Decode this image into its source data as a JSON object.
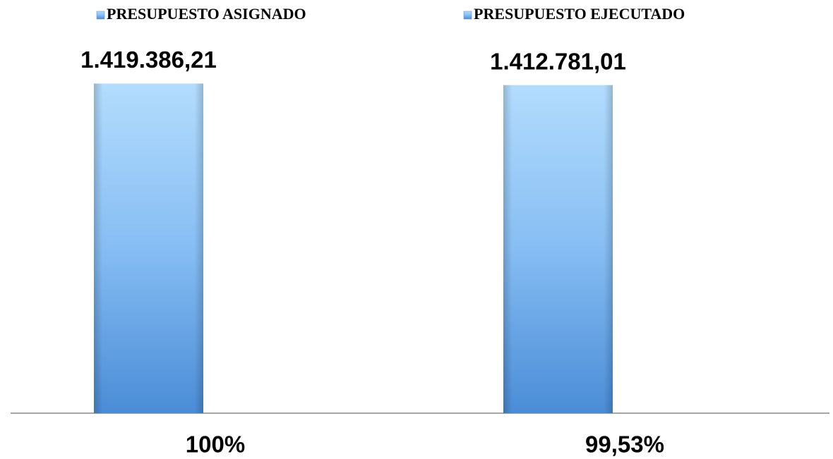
{
  "chart_data": {
    "type": "bar",
    "categories": [
      "100%",
      "99,53%"
    ],
    "series": [
      {
        "name": "PRESUPUESTO ASIGNADO",
        "color": "#5b9bd5",
        "values": [
          1419386.21,
          null
        ],
        "value_labels": [
          "1.419.386,21",
          null
        ]
      },
      {
        "name": "PRESUPUESTO EJECUTADO",
        "color": "#5b9bd5",
        "values": [
          null,
          1412781.01
        ],
        "value_labels": [
          null,
          "1.412.781,01"
        ]
      }
    ],
    "ylim": [
      0,
      1600000
    ],
    "legend": "top"
  }
}
